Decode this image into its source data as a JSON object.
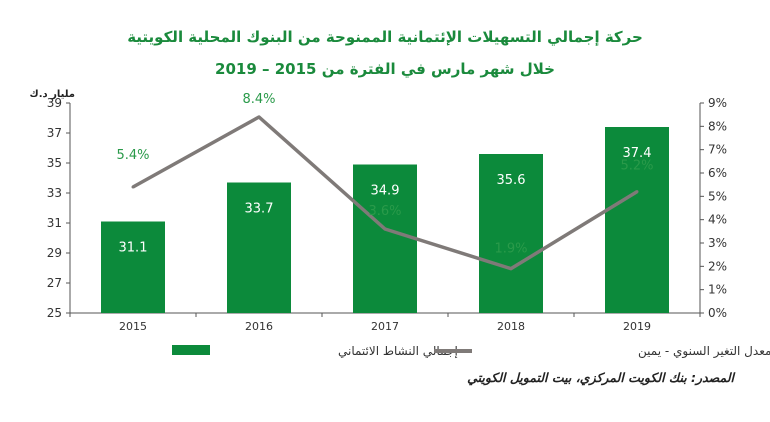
{
  "title_line1": "حركة إجمالي التسهيلات الإئتمانية الممنوحة من البنوك المحلية الكويتية",
  "title_line2": "خلال شهر مارس في الفترة من 2015 – 2019",
  "source": "المصدر: بنك الكويت المركزي، بيت التمويل الكويتي",
  "colors": {
    "bar": "#0c8a3b",
    "line": "#7f7a78",
    "title": "#1a8a3c",
    "axis": "#555555"
  },
  "chart_data": {
    "type": "bar+line",
    "categories": [
      "2015",
      "2016",
      "2017",
      "2018",
      "2019"
    ],
    "unit_left": "مليار د.ك",
    "y_left": {
      "min": 25,
      "max": 39,
      "ticks": [
        "25",
        "27",
        "29",
        "31",
        "33",
        "35",
        "37",
        "39"
      ]
    },
    "y_right": {
      "min": 0,
      "max": 9,
      "ticks": [
        "0%",
        "1%",
        "2%",
        "3%",
        "4%",
        "5%",
        "6%",
        "7%",
        "8%",
        "9%"
      ]
    },
    "series": [
      {
        "name": "إجمالي النشاط الائتماني",
        "kind": "bar",
        "axis": "left",
        "values": [
          31.1,
          33.7,
          34.9,
          35.6,
          37.4
        ],
        "labels": [
          "31.1",
          "33.7",
          "34.9",
          "35.6",
          "37.4"
        ]
      },
      {
        "name": "معدل التغير السنوي - يمين",
        "kind": "line",
        "axis": "right",
        "values": [
          5.4,
          8.4,
          3.6,
          1.9,
          5.2
        ],
        "labels": [
          "5.4%",
          "8.4%",
          "3.6%",
          "1.9%",
          "5.2%"
        ]
      }
    ],
    "legend_position": "bottom",
    "grid": false
  }
}
